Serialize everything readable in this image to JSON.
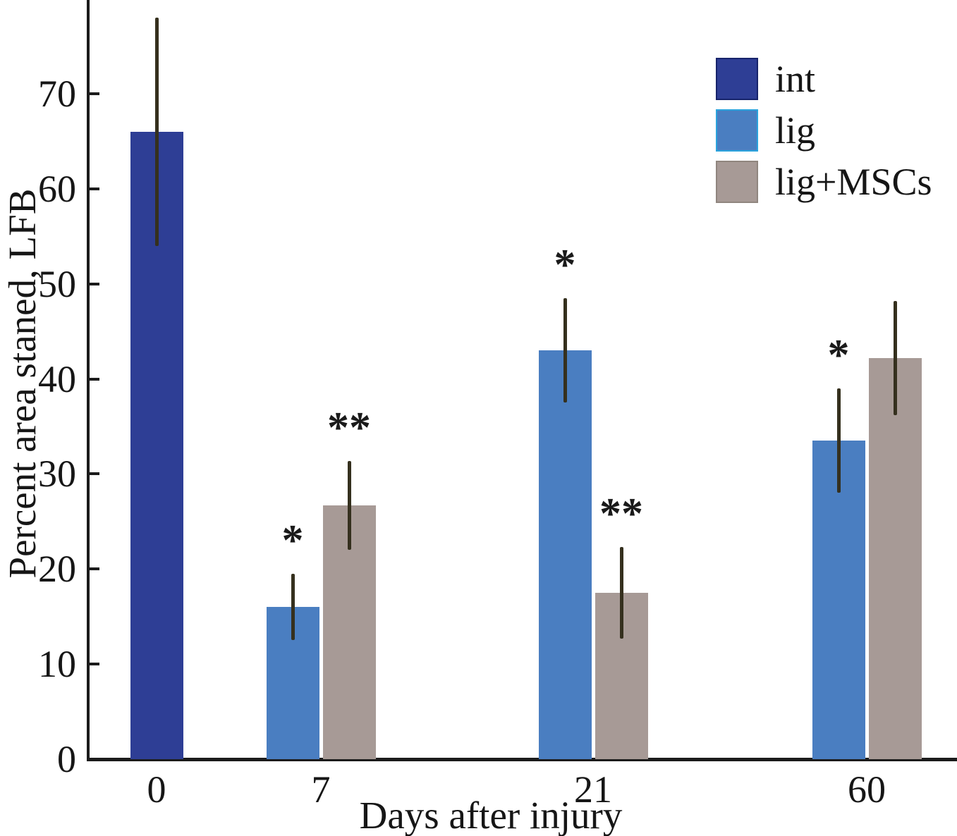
{
  "chart_data": {
    "type": "bar",
    "title": "",
    "xlabel": "Days after injury",
    "ylabel": "Percent area staned, LFB",
    "categories": [
      "0",
      "7",
      "21",
      "60"
    ],
    "yticks": [
      0,
      10,
      20,
      30,
      40,
      50,
      60,
      70
    ],
    "ylim": [
      0,
      79.9
    ],
    "grid": false,
    "legend_position": "top-right",
    "error_bar_color": "#35301e",
    "series": [
      {
        "name": "int",
        "color": "#2e3e95",
        "border_color": "#17246b",
        "values": [
          66,
          null,
          null,
          null
        ],
        "errors": [
          12,
          null,
          null,
          null
        ],
        "annotations": [
          null,
          null,
          null,
          null
        ]
      },
      {
        "name": "lig",
        "color": "#4a7ec1",
        "border_color": "#2ba3dd",
        "values": [
          null,
          16,
          43,
          33.5
        ],
        "errors": [
          null,
          3.5,
          5.5,
          5.5
        ],
        "annotations": [
          null,
          "*",
          "*",
          "*"
        ]
      },
      {
        "name": "lig+MSCs",
        "color": "#a79a96",
        "border_color": "#90867f",
        "values": [
          null,
          26.7,
          17.5,
          42.2
        ],
        "errors": [
          null,
          4.7,
          4.8,
          6
        ],
        "annotations": [
          null,
          "**",
          "**",
          null
        ]
      }
    ]
  }
}
